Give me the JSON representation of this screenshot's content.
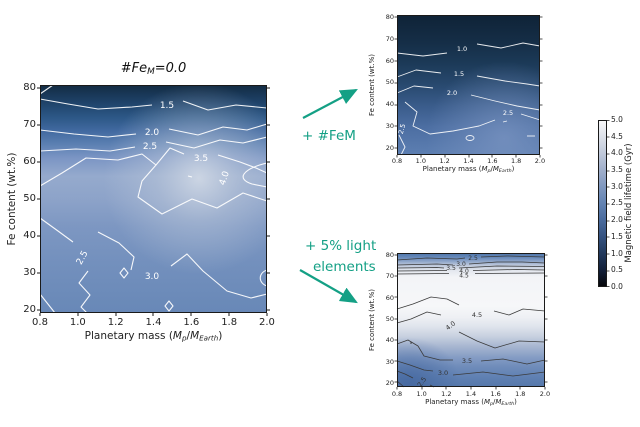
{
  "figure": {
    "description": "Contour maps of magnetic field lifetime versus planetary mass and Fe content",
    "background": "#ffffff"
  },
  "colors": {
    "accent": "#14a085",
    "contour_light": "#ffffff",
    "contour_dark": "#3a3a3a"
  },
  "axes": {
    "xlabel_pre": "Planetary mass (",
    "xlabel_m1": "M",
    "xlabel_sub1": "p",
    "xlabel_slash": "/",
    "xlabel_m2": "M",
    "xlabel_sub2": "Earth",
    "xlabel_post": ")",
    "ylabel": "Fe content (wt.%)",
    "xticks": [
      "0.8",
      "1.0",
      "1.2",
      "1.4",
      "1.6",
      "1.8",
      "2.0"
    ],
    "yticks": [
      "80",
      "70",
      "60",
      "50",
      "40",
      "30",
      "20"
    ]
  },
  "plots": {
    "main": {
      "title_p1": "#Fe",
      "title_sub": "M",
      "title_p2": "=0.0",
      "contour_labels": [
        "1.5",
        "2.0",
        "2.5",
        "3.5",
        "4.0",
        "2.5",
        "3.0"
      ]
    },
    "fem": {
      "contour_labels": [
        "1.0",
        "1.5",
        "2.0",
        "2.5",
        "2.5"
      ]
    },
    "light": {
      "contour_labels": [
        "2.5",
        "3.0",
        "3.5",
        "4.0",
        "4.5",
        "4.5",
        "4.0",
        "3.5",
        "3.0",
        "2.5"
      ]
    }
  },
  "annotations": {
    "arrow1_label": "+ #FeM",
    "arrow2_label_line1": "+ 5% light",
    "arrow2_label_line2": "elements"
  },
  "colorbar": {
    "label": "Magnetic field lifetime (Gyr)",
    "ticks": [
      "5.0",
      "4.5",
      "4.0",
      "3.5",
      "3.0",
      "2.5",
      "2.0",
      "1.5",
      "1.0",
      "0.5",
      "0.0"
    ],
    "min": 0.0,
    "max": 5.0
  },
  "chart_data": [
    {
      "type": "heatmap",
      "subtype": "filled-contour",
      "title": "#FeM=0.0",
      "xlabel": "Planetary mass (Mp/MEarth)",
      "ylabel": "Fe content (wt.%)",
      "xlim": [
        0.8,
        2.0
      ],
      "ylim": [
        20,
        80
      ],
      "xticks": [
        0.8,
        1.0,
        1.2,
        1.4,
        1.6,
        1.8,
        2.0
      ],
      "yticks": [
        20,
        30,
        40,
        50,
        60,
        70,
        80
      ],
      "value_label": "Magnetic field lifetime (Gyr)",
      "value_range": [
        0.0,
        5.0
      ],
      "labeled_contour_levels": [
        1.5,
        2.0,
        2.5,
        3.0,
        3.5,
        4.0
      ],
      "pattern": "Lifetime ~1.5 Gyr at Fe 80 wt.% (dark), increases downward; maximum ~4 Gyr around Fe 50-60 wt.% and mass 1.4-2.0; ~2.5-3 Gyr below Fe 40 wt.%"
    },
    {
      "type": "heatmap",
      "subtype": "filled-contour",
      "annotation": "+ #FeM",
      "xlabel": "Planetary mass (Mp/MEarth)",
      "ylabel": "Fe content (wt.%)",
      "xlim": [
        0.8,
        2.0
      ],
      "ylim": [
        20,
        80
      ],
      "value_label": "Magnetic field lifetime (Gyr)",
      "value_range": [
        0.0,
        5.0
      ],
      "labeled_contour_levels": [
        1.0,
        1.5,
        2.0,
        2.5
      ],
      "pattern": "Overall shorter lifetimes: ~1 Gyr above Fe 60 wt.%, increasing to ~2.5 Gyr at low Fe content and high mass"
    },
    {
      "type": "heatmap",
      "subtype": "filled-contour",
      "annotation": "+ 5% light elements",
      "xlabel": "Planetary mass (Mp/MEarth)",
      "ylabel": "Fe content (wt.%)",
      "xlim": [
        0.8,
        2.0
      ],
      "ylim": [
        20,
        80
      ],
      "value_label": "Magnetic field lifetime (Gyr)",
      "value_range": [
        0.0,
        5.0
      ],
      "labeled_contour_levels": [
        2.5,
        3.0,
        3.5,
        4.0,
        4.5
      ],
      "pattern": "Longer lifetimes: >4.5-5 Gyr (near-white) band for Fe 50-70 wt.%; tight contour stack 2.5-4.5 near Fe 72-80 wt.%; decreasing to ~2.5 Gyr below Fe 25 wt.%"
    }
  ]
}
